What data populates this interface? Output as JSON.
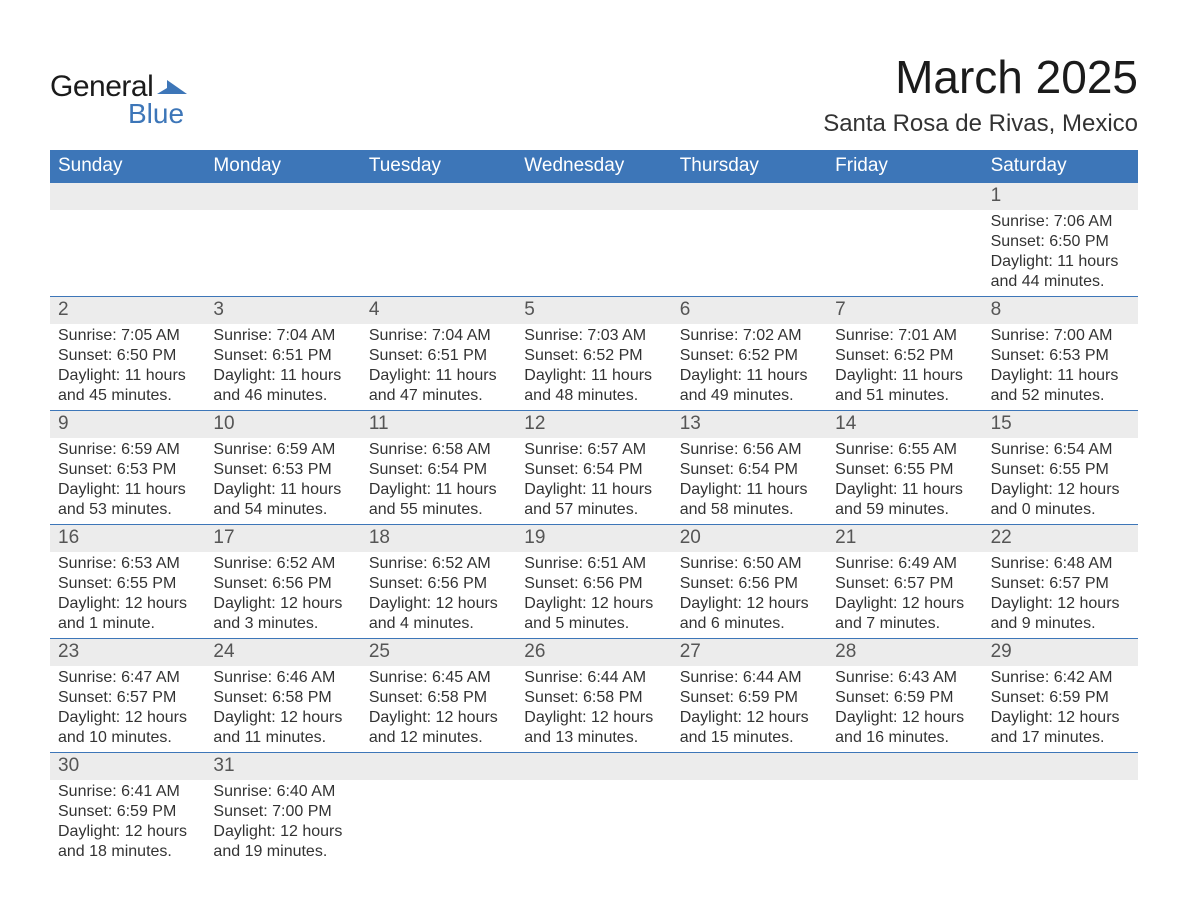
{
  "logo": {
    "text1": "General",
    "text2": "Blue"
  },
  "title": "March 2025",
  "location": "Santa Rosa de Rivas, Mexico",
  "colors": {
    "header_bg": "#3d76b8",
    "header_text": "#ffffff",
    "daynum_bg": "#ececec",
    "text": "#333333",
    "border": "#3d76b8"
  },
  "day_headers": [
    "Sunday",
    "Monday",
    "Tuesday",
    "Wednesday",
    "Thursday",
    "Friday",
    "Saturday"
  ],
  "weeks": [
    [
      {
        "n": "",
        "lines": []
      },
      {
        "n": "",
        "lines": []
      },
      {
        "n": "",
        "lines": []
      },
      {
        "n": "",
        "lines": []
      },
      {
        "n": "",
        "lines": []
      },
      {
        "n": "",
        "lines": []
      },
      {
        "n": "1",
        "lines": [
          "Sunrise: 7:06 AM",
          "Sunset: 6:50 PM",
          "Daylight: 11 hours and 44 minutes."
        ]
      }
    ],
    [
      {
        "n": "2",
        "lines": [
          "Sunrise: 7:05 AM",
          "Sunset: 6:50 PM",
          "Daylight: 11 hours and 45 minutes."
        ]
      },
      {
        "n": "3",
        "lines": [
          "Sunrise: 7:04 AM",
          "Sunset: 6:51 PM",
          "Daylight: 11 hours and 46 minutes."
        ]
      },
      {
        "n": "4",
        "lines": [
          "Sunrise: 7:04 AM",
          "Sunset: 6:51 PM",
          "Daylight: 11 hours and 47 minutes."
        ]
      },
      {
        "n": "5",
        "lines": [
          "Sunrise: 7:03 AM",
          "Sunset: 6:52 PM",
          "Daylight: 11 hours and 48 minutes."
        ]
      },
      {
        "n": "6",
        "lines": [
          "Sunrise: 7:02 AM",
          "Sunset: 6:52 PM",
          "Daylight: 11 hours and 49 minutes."
        ]
      },
      {
        "n": "7",
        "lines": [
          "Sunrise: 7:01 AM",
          "Sunset: 6:52 PM",
          "Daylight: 11 hours and 51 minutes."
        ]
      },
      {
        "n": "8",
        "lines": [
          "Sunrise: 7:00 AM",
          "Sunset: 6:53 PM",
          "Daylight: 11 hours and 52 minutes."
        ]
      }
    ],
    [
      {
        "n": "9",
        "lines": [
          "Sunrise: 6:59 AM",
          "Sunset: 6:53 PM",
          "Daylight: 11 hours and 53 minutes."
        ]
      },
      {
        "n": "10",
        "lines": [
          "Sunrise: 6:59 AM",
          "Sunset: 6:53 PM",
          "Daylight: 11 hours and 54 minutes."
        ]
      },
      {
        "n": "11",
        "lines": [
          "Sunrise: 6:58 AM",
          "Sunset: 6:54 PM",
          "Daylight: 11 hours and 55 minutes."
        ]
      },
      {
        "n": "12",
        "lines": [
          "Sunrise: 6:57 AM",
          "Sunset: 6:54 PM",
          "Daylight: 11 hours and 57 minutes."
        ]
      },
      {
        "n": "13",
        "lines": [
          "Sunrise: 6:56 AM",
          "Sunset: 6:54 PM",
          "Daylight: 11 hours and 58 minutes."
        ]
      },
      {
        "n": "14",
        "lines": [
          "Sunrise: 6:55 AM",
          "Sunset: 6:55 PM",
          "Daylight: 11 hours and 59 minutes."
        ]
      },
      {
        "n": "15",
        "lines": [
          "Sunrise: 6:54 AM",
          "Sunset: 6:55 PM",
          "Daylight: 12 hours and 0 minutes."
        ]
      }
    ],
    [
      {
        "n": "16",
        "lines": [
          "Sunrise: 6:53 AM",
          "Sunset: 6:55 PM",
          "Daylight: 12 hours and 1 minute."
        ]
      },
      {
        "n": "17",
        "lines": [
          "Sunrise: 6:52 AM",
          "Sunset: 6:56 PM",
          "Daylight: 12 hours and 3 minutes."
        ]
      },
      {
        "n": "18",
        "lines": [
          "Sunrise: 6:52 AM",
          "Sunset: 6:56 PM",
          "Daylight: 12 hours and 4 minutes."
        ]
      },
      {
        "n": "19",
        "lines": [
          "Sunrise: 6:51 AM",
          "Sunset: 6:56 PM",
          "Daylight: 12 hours and 5 minutes."
        ]
      },
      {
        "n": "20",
        "lines": [
          "Sunrise: 6:50 AM",
          "Sunset: 6:56 PM",
          "Daylight: 12 hours and 6 minutes."
        ]
      },
      {
        "n": "21",
        "lines": [
          "Sunrise: 6:49 AM",
          "Sunset: 6:57 PM",
          "Daylight: 12 hours and 7 minutes."
        ]
      },
      {
        "n": "22",
        "lines": [
          "Sunrise: 6:48 AM",
          "Sunset: 6:57 PM",
          "Daylight: 12 hours and 9 minutes."
        ]
      }
    ],
    [
      {
        "n": "23",
        "lines": [
          "Sunrise: 6:47 AM",
          "Sunset: 6:57 PM",
          "Daylight: 12 hours and 10 minutes."
        ]
      },
      {
        "n": "24",
        "lines": [
          "Sunrise: 6:46 AM",
          "Sunset: 6:58 PM",
          "Daylight: 12 hours and 11 minutes."
        ]
      },
      {
        "n": "25",
        "lines": [
          "Sunrise: 6:45 AM",
          "Sunset: 6:58 PM",
          "Daylight: 12 hours and 12 minutes."
        ]
      },
      {
        "n": "26",
        "lines": [
          "Sunrise: 6:44 AM",
          "Sunset: 6:58 PM",
          "Daylight: 12 hours and 13 minutes."
        ]
      },
      {
        "n": "27",
        "lines": [
          "Sunrise: 6:44 AM",
          "Sunset: 6:59 PM",
          "Daylight: 12 hours and 15 minutes."
        ]
      },
      {
        "n": "28",
        "lines": [
          "Sunrise: 6:43 AM",
          "Sunset: 6:59 PM",
          "Daylight: 12 hours and 16 minutes."
        ]
      },
      {
        "n": "29",
        "lines": [
          "Sunrise: 6:42 AM",
          "Sunset: 6:59 PM",
          "Daylight: 12 hours and 17 minutes."
        ]
      }
    ],
    [
      {
        "n": "30",
        "lines": [
          "Sunrise: 6:41 AM",
          "Sunset: 6:59 PM",
          "Daylight: 12 hours and 18 minutes."
        ]
      },
      {
        "n": "31",
        "lines": [
          "Sunrise: 6:40 AM",
          "Sunset: 7:00 PM",
          "Daylight: 12 hours and 19 minutes."
        ]
      },
      {
        "n": "",
        "lines": []
      },
      {
        "n": "",
        "lines": []
      },
      {
        "n": "",
        "lines": []
      },
      {
        "n": "",
        "lines": []
      },
      {
        "n": "",
        "lines": []
      }
    ]
  ]
}
